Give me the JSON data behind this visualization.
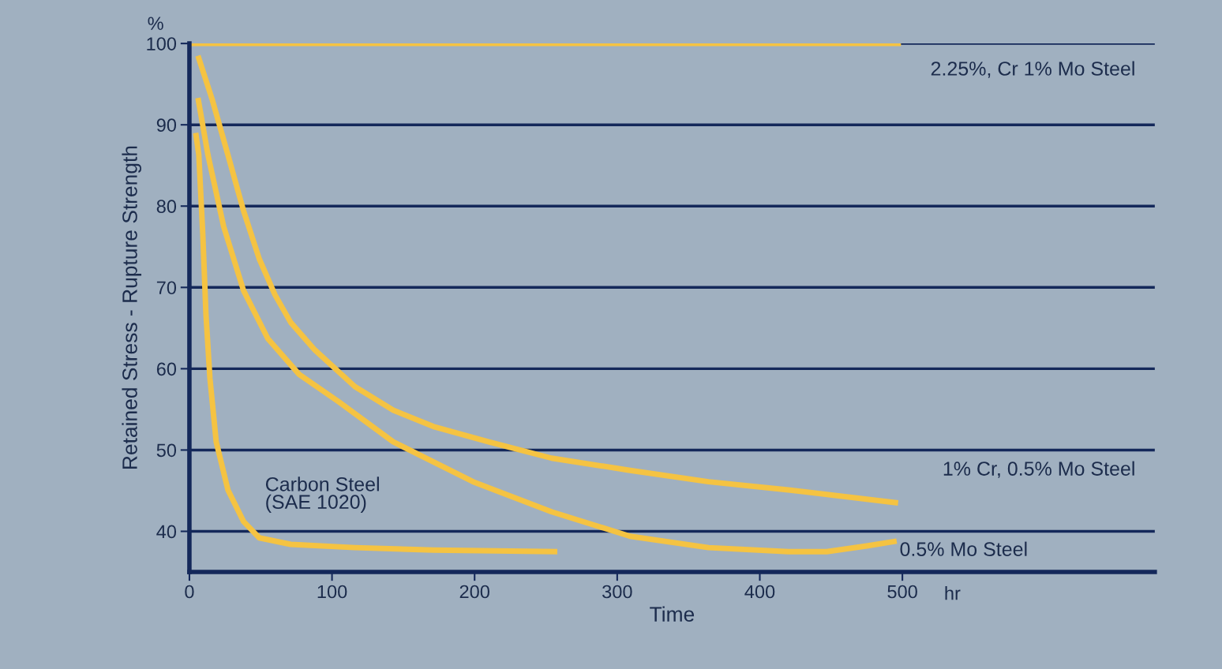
{
  "chart_data": {
    "type": "line",
    "xlabel": "Time",
    "ylabel": "Retained Stress - Rupture Strength",
    "xlim": [
      0,
      677
    ],
    "ylim": [
      35,
      100
    ],
    "xticks": [
      0,
      100,
      200,
      300,
      400,
      500
    ],
    "yticks": [
      40,
      50,
      60,
      70,
      80,
      90,
      100
    ],
    "grid": "y",
    "legend": false,
    "marker": "none",
    "line_style": "solid",
    "annotations": [
      "%",
      "hr"
    ],
    "series": [
      {
        "name": "2.25%, Cr 1% Mo Steel",
        "color": "#f5c342",
        "x": [
          0,
          499
        ],
        "values": [
          100,
          100
        ]
      },
      {
        "name": "Carbon Steel\n(SAE 1020)",
        "color": "#f5c342",
        "x": [
          4.4,
          6.6,
          9.4,
          11.6,
          14.4,
          18.8,
          27,
          38,
          49,
          71,
          116,
          171,
          258
        ],
        "values": [
          89,
          86.3,
          76.5,
          66.7,
          58.8,
          51,
          45.1,
          41.2,
          39.2,
          38.4,
          38,
          37.7,
          37.5
        ]
      },
      {
        "name": "1% Cr, 0.5% Mo Steel",
        "color": "#f5c342",
        "x": [
          6,
          16,
          27,
          38,
          49,
          60,
          71,
          88,
          116,
          143,
          171,
          210,
          254,
          309,
          364,
          420,
          497
        ],
        "values": [
          98.5,
          93.1,
          86.3,
          79.4,
          73.5,
          69.1,
          65.7,
          62.3,
          57.8,
          54.9,
          52.9,
          51,
          49,
          47.5,
          46.1,
          45.1,
          43.5
        ]
      },
      {
        "name": "0.5% Mo Steel",
        "color": "#f5c342",
        "x": [
          6,
          13,
          24,
          38,
          55,
          77,
          105,
          143,
          199,
          254,
          309,
          364,
          420,
          447,
          475,
          496
        ],
        "values": [
          93.3,
          86.3,
          77.5,
          69.6,
          63.7,
          59.3,
          55.9,
          51,
          46.1,
          42.4,
          39.4,
          38,
          37.5,
          37.5,
          38.2,
          38.8
        ]
      }
    ]
  }
}
